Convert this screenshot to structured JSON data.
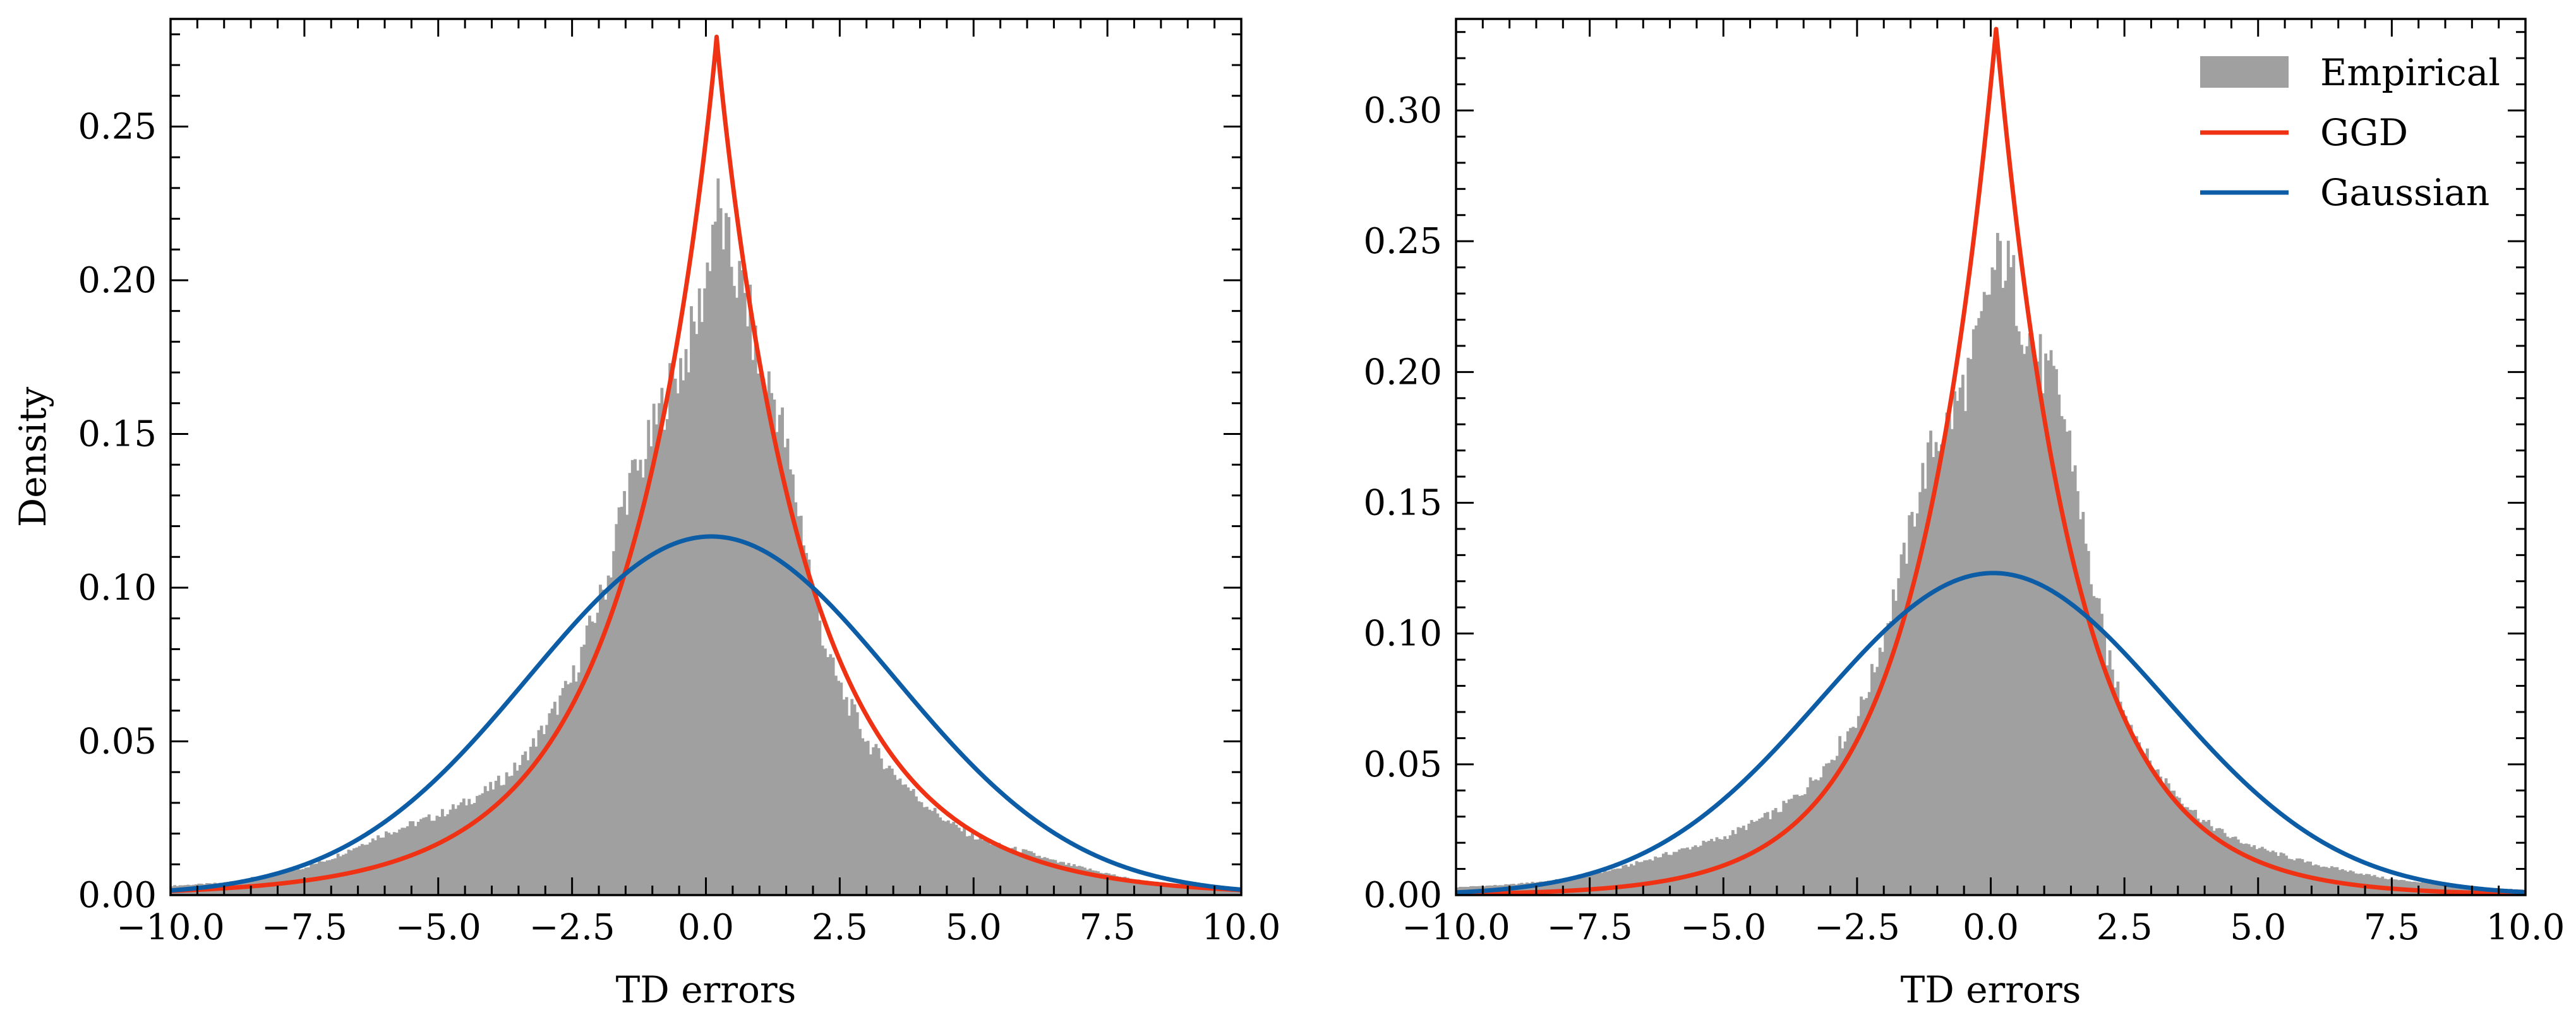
{
  "chart_data": [
    {
      "type": "histogram+line",
      "title": "",
      "xlabel": "TD errors",
      "ylabel": "Density",
      "xlim": [
        -10.0,
        10.0
      ],
      "ylim": [
        0.0,
        0.285
      ],
      "x_ticks": [
        -10.0,
        -7.5,
        -5.0,
        -2.5,
        0.0,
        2.5,
        5.0,
        7.5,
        10.0
      ],
      "x_tick_labels": [
        "−10.0",
        "−7.5",
        "−5.0",
        "−2.5",
        "0.0",
        "2.5",
        "5.0",
        "7.5",
        "10.0"
      ],
      "y_ticks": [
        0.0,
        0.05,
        0.1,
        0.15,
        0.2,
        0.25
      ],
      "y_tick_labels": [
        "0.00",
        "0.05",
        "0.10",
        "0.15",
        "0.20",
        "0.25"
      ],
      "legend": null,
      "empirical": {
        "name": "Empirical",
        "color": "#a0a0a0",
        "x": [
          -10.0,
          -9.0,
          -8.0,
          -7.5,
          -7.0,
          -6.5,
          -6.0,
          -5.5,
          -5.0,
          -4.5,
          -4.0,
          -3.5,
          -3.0,
          -2.5,
          -2.2,
          -2.0,
          -1.8,
          -1.6,
          -1.4,
          -1.2,
          -1.0,
          -0.8,
          -0.6,
          -0.4,
          -0.2,
          0.0,
          0.1,
          0.2,
          0.3,
          0.4,
          0.6,
          0.8,
          1.0,
          1.2,
          1.4,
          1.6,
          1.8,
          2.0,
          2.2,
          2.4,
          2.6,
          2.8,
          3.0,
          3.5,
          4.0,
          4.5,
          5.0,
          5.5,
          6.0,
          6.5,
          7.0,
          7.5,
          8.0,
          9.0,
          10.0
        ],
        "density": [
          0.003,
          0.004,
          0.007,
          0.009,
          0.012,
          0.016,
          0.02,
          0.023,
          0.026,
          0.03,
          0.035,
          0.042,
          0.055,
          0.07,
          0.085,
          0.095,
          0.105,
          0.125,
          0.135,
          0.14,
          0.15,
          0.16,
          0.168,
          0.175,
          0.185,
          0.2,
          0.215,
          0.225,
          0.218,
          0.21,
          0.2,
          0.19,
          0.17,
          0.165,
          0.155,
          0.135,
          0.12,
          0.1,
          0.083,
          0.072,
          0.064,
          0.058,
          0.05,
          0.04,
          0.031,
          0.024,
          0.019,
          0.016,
          0.014,
          0.011,
          0.009,
          0.007,
          0.005,
          0.003,
          0.002
        ]
      },
      "series": [
        {
          "name": "GGD",
          "color": "#f03214",
          "dist": "ggd",
          "mu": 0.2,
          "alpha": 1.75,
          "beta": 0.95
        },
        {
          "name": "Gaussian",
          "color": "#0c5da5",
          "dist": "gaussian",
          "mu": 0.1,
          "sigma": 3.42
        }
      ]
    },
    {
      "type": "histogram+line",
      "title": "",
      "xlabel": "TD errors",
      "ylabel": "",
      "xlim": [
        -10.0,
        10.0
      ],
      "ylim": [
        0.0,
        0.335
      ],
      "x_ticks": [
        -10.0,
        -7.5,
        -5.0,
        -2.5,
        0.0,
        2.5,
        5.0,
        7.5,
        10.0
      ],
      "x_tick_labels": [
        "−10.0",
        "−7.5",
        "−5.0",
        "−2.5",
        "0.0",
        "2.5",
        "5.0",
        "7.5",
        "10.0"
      ],
      "y_ticks": [
        0.0,
        0.05,
        0.1,
        0.15,
        0.2,
        0.25,
        0.3
      ],
      "y_tick_labels": [
        "0.00",
        "0.05",
        "0.10",
        "0.15",
        "0.20",
        "0.25",
        "0.30"
      ],
      "legend": "top-right",
      "empirical": {
        "name": "Empirical",
        "color": "#a0a0a0",
        "x": [
          -10.0,
          -9.0,
          -8.0,
          -7.5,
          -7.0,
          -6.5,
          -6.0,
          -5.5,
          -5.0,
          -4.5,
          -4.0,
          -3.5,
          -3.0,
          -2.5,
          -2.2,
          -2.0,
          -1.8,
          -1.6,
          -1.4,
          -1.2,
          -1.0,
          -0.8,
          -0.6,
          -0.4,
          -0.2,
          0.0,
          0.1,
          0.2,
          0.3,
          0.4,
          0.6,
          0.8,
          1.0,
          1.2,
          1.4,
          1.6,
          1.8,
          2.0,
          2.2,
          2.4,
          2.6,
          2.8,
          3.0,
          3.5,
          4.0,
          4.5,
          5.0,
          5.5,
          6.0,
          6.5,
          7.0,
          7.5,
          8.0,
          9.0,
          10.0
        ],
        "density": [
          0.003,
          0.004,
          0.006,
          0.008,
          0.01,
          0.013,
          0.016,
          0.019,
          0.022,
          0.027,
          0.032,
          0.04,
          0.052,
          0.068,
          0.085,
          0.1,
          0.115,
          0.13,
          0.15,
          0.165,
          0.175,
          0.18,
          0.19,
          0.2,
          0.215,
          0.235,
          0.24,
          0.245,
          0.24,
          0.235,
          0.22,
          0.21,
          0.2,
          0.195,
          0.18,
          0.16,
          0.13,
          0.11,
          0.09,
          0.078,
          0.066,
          0.058,
          0.05,
          0.038,
          0.028,
          0.022,
          0.018,
          0.015,
          0.012,
          0.01,
          0.008,
          0.006,
          0.005,
          0.003,
          0.002
        ]
      },
      "series": [
        {
          "name": "GGD",
          "color": "#f03214",
          "dist": "ggd",
          "mu": 0.1,
          "alpha": 1.51,
          "beta": 1.0
        },
        {
          "name": "Gaussian",
          "color": "#0c5da5",
          "dist": "gaussian",
          "mu": 0.05,
          "sigma": 3.24
        }
      ]
    }
  ],
  "legend_entries": [
    {
      "label": "Empirical",
      "kind": "patch",
      "color": "#a0a0a0"
    },
    {
      "label": "GGD",
      "kind": "line",
      "color": "#f03214"
    },
    {
      "label": "Gaussian",
      "kind": "line",
      "color": "#0c5da5"
    }
  ]
}
